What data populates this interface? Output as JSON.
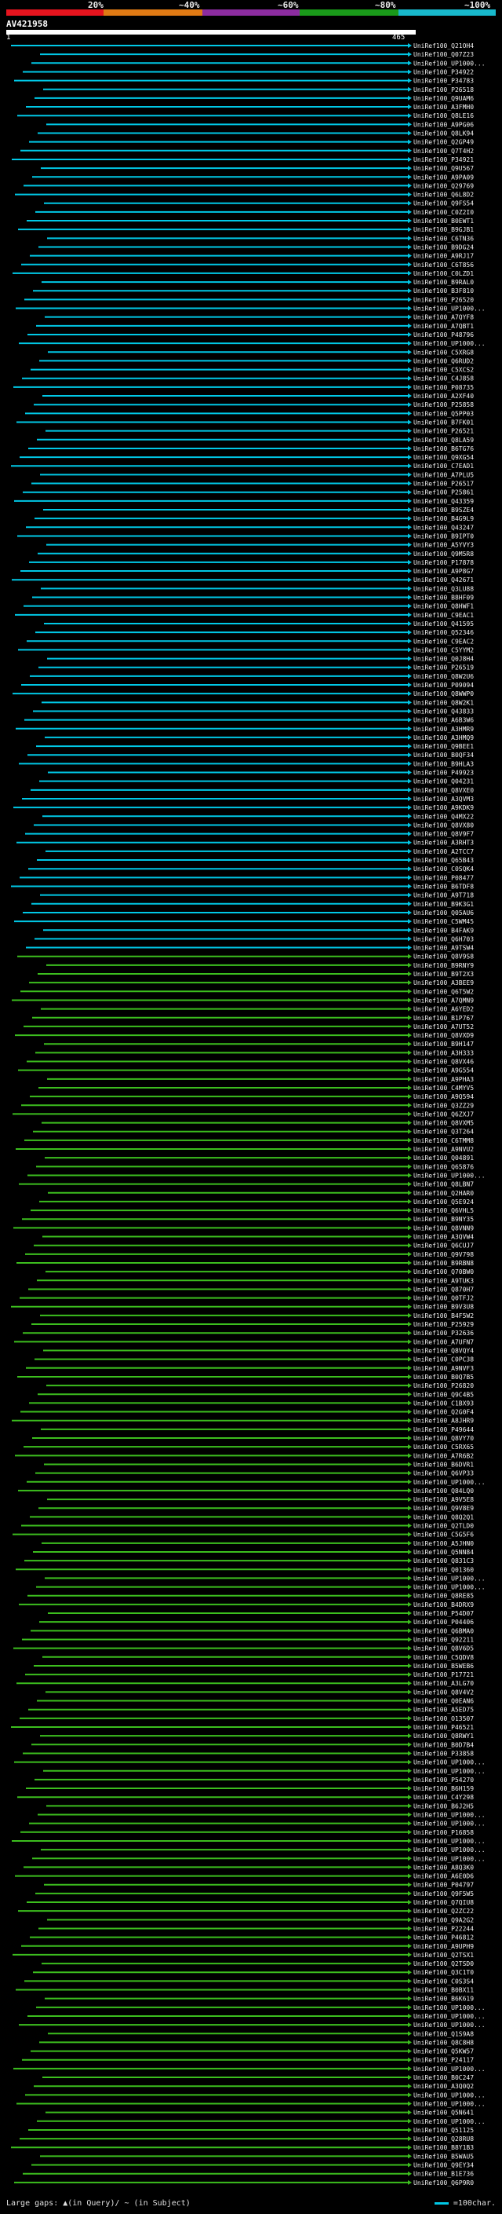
{
  "header": {
    "pct_labels": [
      "20%",
      "~40%",
      "~60%",
      "~80%",
      "~100%"
    ],
    "colors": [
      "#e6141e",
      "#e07a14",
      "#8c2ca0",
      "#1a9a1a",
      "#18b9cc"
    ]
  },
  "query": {
    "id": "AV421958",
    "start": "1",
    "end": "465"
  },
  "footer": {
    "left": "Large gaps: ▲(in Query)/ ~ (in Subject)",
    "right": "=100char."
  },
  "colors": {
    "cyan": "#00c8e6",
    "green": "#3cbe1e",
    "line": "#00c8e6"
  },
  "hits": [
    "UniRef100_Q21OH4",
    "UniRef100_Q07Z23",
    "UniRef100_UP1000...",
    "UniRef100_P34922",
    "UniRef100_P34783",
    "UniRef100_P26518",
    "UniRef100_Q9UAM6",
    "UniRef100_A3FMH0",
    "UniRef100_Q8LE16",
    "UniRef100_A9PG06",
    "UniRef100_Q8LK94",
    "UniRef100_Q2GP49",
    "UniRef100_Q7T4H2",
    "UniRef100_P34921",
    "UniRef100_Q9U567",
    "UniRef100_A9PA09",
    "UniRef100_Q29769",
    "UniRef100_Q6L8D2",
    "UniRef100_Q9FS54",
    "UniRef100_C0Z2I0",
    "UniRef100_B0EWT1",
    "UniRef100_B9GJB1",
    "UniRef100_C6TN36",
    "UniRef100_B9DG24",
    "UniRef100_A9RJ17",
    "UniRef100_C6T856",
    "UniRef100_C0LZD1",
    "UniRef100_B9RAL0",
    "UniRef100_B3F810",
    "UniRef100_P26520",
    "UniRef100_UP1000...",
    "UniRef100_A7QYF8",
    "UniRef100_A7QBT1",
    "UniRef100_P48796",
    "UniRef100_UP1000...",
    "UniRef100_C5XRG8",
    "UniRef100_Q6RUD2",
    "UniRef100_C5XCS2",
    "UniRef100_C4J858",
    "UniRef100_P08735",
    "UniRef100_A2XF40",
    "UniRef100_P25858",
    "UniRef100_Q5PP03",
    "UniRef100_B7FK01",
    "UniRef100_P26521",
    "UniRef100_Q8LA59",
    "UniRef100_B6TG76",
    "UniRef100_Q9XG54",
    "UniRef100_C7EAD1",
    "UniRef100_A7PLU5",
    "UniRef100_P26517",
    "UniRef100_P25861",
    "UniRef100_Q43359",
    "UniRef100_B9SZE4",
    "UniRef100_B4G9L9",
    "UniRef100_Q43247",
    "UniRef100_B9IPT0",
    "UniRef100_A5YVY3",
    "UniRef100_Q9M5R8",
    "UniRef100_P17878",
    "UniRef100_A9P8G7",
    "UniRef100_Q42671",
    "UniRef100_Q3LU88",
    "UniRef100_B8HF09",
    "UniRef100_Q8HWF1",
    "UniRef100_C9EAC1",
    "UniRef100_Q41595",
    "UniRef100_Q52346",
    "UniRef100_C9EAC2",
    "UniRef100_C5YYM2",
    "UniRef100_Q0J8H4",
    "UniRef100_P26519",
    "UniRef100_Q8W2U6",
    "UniRef100_P09094",
    "UniRef100_Q8WWP0",
    "UniRef100_Q8W2K1",
    "UniRef100_Q43833",
    "UniRef100_A6B3W6",
    "UniRef100_A3HMR9",
    "UniRef100_A3HMQ9",
    "UniRef100_Q9BEE1",
    "UniRef100_B0QF34",
    "UniRef100_B9HLA3",
    "UniRef100_P49923",
    "UniRef100_Q04231",
    "UniRef100_Q8VXE0",
    "UniRef100_A3QVM3",
    "UniRef100_A9KDK9",
    "UniRef100_Q4MX22",
    "UniRef100_Q8VX80",
    "UniRef100_Q8V9F7",
    "UniRef100_A3RHT3",
    "UniRef100_A2TCC7",
    "UniRef100_Q65B43",
    "UniRef100_C0SQK4",
    "UniRef100_P08477",
    "UniRef100_B6TDF8",
    "UniRef100_A9T718",
    "UniRef100_B9K3G1",
    "UniRef100_Q05AU6",
    "UniRef100_C5WM45",
    "UniRef100_B4FAK9",
    "UniRef100_Q6H703",
    "UniRef100_A9TSW4",
    "UniRef100_Q8V9S8",
    "UniRef100_B9RNY9",
    "UniRef100_B9T2X3",
    "UniRef100_A3BEE9",
    "UniRef100_Q6T5W2",
    "UniRef100_A7QMN9",
    "UniRef100_A6YED2",
    "UniRef100_B1P767",
    "UniRef100_A7UT52",
    "UniRef100_Q8VXD9",
    "UniRef100_B9H147",
    "UniRef100_A3H333",
    "UniRef100_Q8VX46",
    "UniRef100_A9G554",
    "UniRef100_A9PHA3",
    "UniRef100_C4MYV5",
    "UniRef100_A9Q594",
    "UniRef100_Q3ZZ29",
    "UniRef100_Q6ZXJ7",
    "UniRef100_Q8VXM5",
    "UniRef100_Q3T264",
    "UniRef100_C6TMM8",
    "UniRef100_A9NVU2",
    "UniRef100_Q04891",
    "UniRef100_Q65876",
    "UniRef100_UP1000...",
    "UniRef100_Q8LBN7",
    "UniRef100_Q2HAR0",
    "UniRef100_Q5E924",
    "UniRef100_Q6VHL5",
    "UniRef100_B9NY35",
    "UniRef100_Q8VNN9",
    "UniRef100_A3QVW4",
    "UniRef100_Q6CUJ7",
    "UniRef100_Q9V798",
    "UniRef100_B9RBN8",
    "UniRef100_Q70BW0",
    "UniRef100_A9TUK3",
    "UniRef100_Q870H7",
    "UniRef100_Q0TFJ2",
    "UniRef100_B9V3U8",
    "UniRef100_B4F5W2",
    "UniRef100_P25929",
    "UniRef100_P32636",
    "UniRef100_A7UFN7",
    "UniRef100_Q8VQY4",
    "UniRef100_C0PC38",
    "UniRef100_A9NVF3",
    "UniRef100_B0Q7B5",
    "UniRef100_P26820",
    "UniRef100_Q9C4B5",
    "UniRef100_C1BX93",
    "UniRef100_Q2G0F4",
    "UniRef100_A8JHR9",
    "UniRef100_P49644",
    "UniRef100_Q8VY70",
    "UniRef100_C5RX65",
    "UniRef100_A7R6B2",
    "UniRef100_B6DVR1",
    "UniRef100_Q6VP33",
    "UniRef100_UP1000...",
    "UniRef100_Q84LQ0",
    "UniRef100_A9V5E8",
    "UniRef100_Q9V8E9",
    "UniRef100_Q8Q2Q1",
    "UniRef100_Q2TLD0",
    "UniRef100_C5G5F6",
    "UniRef100_A5JHN0",
    "UniRef100_Q5NN84",
    "UniRef100_Q831C3",
    "UniRef100_Q01360",
    "UniRef100_UP1000...",
    "UniRef100_UP1000...",
    "UniRef100_Q8RE85",
    "UniRef100_B4DRX9",
    "UniRef100_P54D07",
    "UniRef100_P04406",
    "UniRef100_Q6BMA0",
    "UniRef100_Q92211",
    "UniRef100_Q8V6D5",
    "UniRef100_C5QDV8",
    "UniRef100_B5WEB6",
    "UniRef100_P17721",
    "UniRef100_A3LG70",
    "UniRef100_Q8V4V2",
    "UniRef100_Q0EAN6",
    "UniRef100_A5ED75",
    "UniRef100_O13507",
    "UniRef100_P46521",
    "UniRef100_Q8RWY1",
    "UniRef100_B0D7B4",
    "UniRef100_P33858",
    "UniRef100_UP1000...",
    "UniRef100_UP1000...",
    "UniRef100_P54270",
    "UniRef100_B6H159",
    "UniRef100_C4Y298",
    "UniRef100_B6J2H5",
    "UniRef100_UP1000...",
    "UniRef100_UP1000...",
    "UniRef100_P16858",
    "UniRef100_UP1000...",
    "UniRef100_UP1000...",
    "UniRef100_UP1000...",
    "UniRef100_A8Q3K0",
    "UniRef100_A6E0D6",
    "UniRef100_P04797",
    "UniRef100_Q9F5W5",
    "UniRef100_Q7QIU8",
    "UniRef100_Q2ZC22",
    "UniRef100_Q9A2G2",
    "UniRef100_P22244",
    "UniRef100_P46812",
    "UniRef100_A9UPH9",
    "UniRef100_Q2TSX1",
    "UniRef100_Q2TSD0",
    "UniRef100_Q3C1T0",
    "UniRef100_C0S3S4",
    "UniRef100_B0BX11",
    "UniRef100_B6K619",
    "UniRef100_UP1000...",
    "UniRef100_UP1000...",
    "UniRef100_UP1000...",
    "UniRef100_Q1S9A8",
    "UniRef100_Q8C8H8",
    "UniRef100_Q5KW57",
    "UniRef100_P24117",
    "UniRef100_UP1000...",
    "UniRef100_B0C247",
    "UniRef100_A3Q0Q2",
    "UniRef100_UP1000...",
    "UniRef100_UP1000...",
    "UniRef100_Q5N641",
    "UniRef100_UP1000...",
    "UniRef100_Q51125",
    "UniRef100_Q28RU8",
    "UniRef100_B8Y1B3",
    "UniRef100_B5WAU5",
    "UniRef100_Q9EY34",
    "UniRef100_B1E736",
    "UniRef100_Q6P9R0"
  ]
}
